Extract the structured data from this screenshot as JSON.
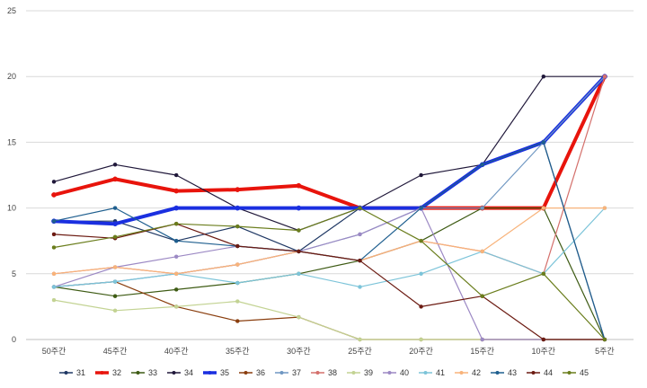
{
  "chart_data": {
    "type": "line",
    "title": "",
    "xlabel": "",
    "ylabel": "",
    "categories": [
      "50주간",
      "45주간",
      "40주간",
      "35주간",
      "30주간",
      "25주간",
      "20주간",
      "15주간",
      "10주간",
      "5주간"
    ],
    "ylim": [
      0,
      25
    ],
    "yticks": [
      0,
      5,
      10,
      15,
      20,
      25
    ],
    "grid": true,
    "legend_position": "bottom",
    "series": [
      {
        "name": "31",
        "color": "#1f3864",
        "width": 1.2,
        "values": [
          9,
          9,
          7.5,
          8.6,
          6.7,
          10,
          10,
          13.3,
          15,
          0
        ]
      },
      {
        "name": "32",
        "color": "#e8140c",
        "width": 4,
        "values": [
          11,
          12.2,
          11.3,
          11.4,
          11.7,
          10,
          10,
          10,
          10,
          20
        ]
      },
      {
        "name": "33",
        "color": "#3e5b14",
        "width": 1.2,
        "values": [
          4,
          3.3,
          3.8,
          4.3,
          5,
          6,
          7.5,
          10,
          10,
          0
        ]
      },
      {
        "name": "34",
        "color": "#20183a",
        "width": 1.2,
        "values": [
          12,
          13.3,
          12.5,
          10,
          8.3,
          10,
          12.5,
          13.3,
          20,
          20
        ]
      },
      {
        "name": "35",
        "color": "#1a2fe0",
        "width": 4,
        "values": [
          9,
          8.8,
          10,
          10,
          10,
          10,
          10,
          13.3,
          15,
          20
        ]
      },
      {
        "name": "36",
        "color": "#8a3e0e",
        "width": 1.2,
        "values": [
          4,
          4.4,
          2.5,
          1.4,
          1.7,
          0,
          0,
          0,
          0,
          0
        ]
      },
      {
        "name": "37",
        "color": "#6f97c2",
        "width": 1.2,
        "values": [
          4,
          4.4,
          5,
          5.7,
          6.7,
          8,
          10,
          10,
          15,
          20
        ]
      },
      {
        "name": "38",
        "color": "#d4706c",
        "width": 1.2,
        "values": [
          5,
          5.5,
          5,
          5.7,
          6.7,
          6,
          7.5,
          6.7,
          5,
          20
        ]
      },
      {
        "name": "39",
        "color": "#c3d393",
        "width": 1.2,
        "values": [
          3,
          2.2,
          2.5,
          2.9,
          1.7,
          0,
          0,
          0,
          0,
          0
        ]
      },
      {
        "name": "40",
        "color": "#9c89c4",
        "width": 1.2,
        "values": [
          4,
          5.5,
          6.3,
          7.1,
          6.7,
          8,
          10,
          0,
          0,
          0
        ]
      },
      {
        "name": "41",
        "color": "#7cc4d9",
        "width": 1.2,
        "values": [
          4,
          4.4,
          5,
          4.3,
          5,
          4,
          5,
          6.7,
          5,
          10
        ]
      },
      {
        "name": "42",
        "color": "#f8b37a",
        "width": 1.2,
        "values": [
          5,
          5.5,
          5,
          5.7,
          6.7,
          6,
          7.5,
          6.7,
          10,
          10
        ]
      },
      {
        "name": "43",
        "color": "#1f5f8f",
        "width": 1.2,
        "values": [
          9,
          10,
          7.5,
          7.1,
          6.7,
          6,
          10,
          13.3,
          15,
          0
        ]
      },
      {
        "name": "44",
        "color": "#6c1b12",
        "width": 1.2,
        "values": [
          8,
          7.7,
          8.8,
          7.1,
          6.7,
          6,
          2.5,
          3.3,
          0,
          0
        ]
      },
      {
        "name": "45",
        "color": "#6a7d1c",
        "width": 1.2,
        "values": [
          7,
          7.8,
          8.8,
          8.6,
          8.3,
          10,
          7.5,
          3.3,
          5,
          0
        ]
      }
    ]
  }
}
